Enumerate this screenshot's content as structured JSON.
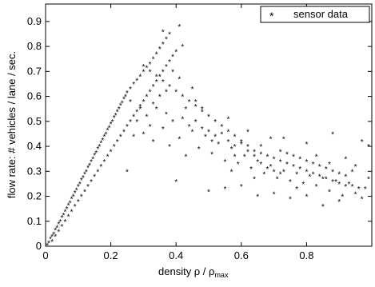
{
  "chart_data": {
    "type": "scatter",
    "title": "",
    "xlabel": "density ρ / ρ",
    "xlabel_sub": "max",
    "ylabel": "flow rate: # vehicles / lane / sec.",
    "xlim": [
      0,
      1.0
    ],
    "ylim": [
      0,
      0.97
    ],
    "xticks": [
      0,
      0.2,
      0.4,
      0.6,
      0.8
    ],
    "xtick_labels": [
      "0",
      "0.2",
      "0.4",
      "0.6",
      "0.8"
    ],
    "yticks": [
      0,
      0.1,
      0.2,
      0.3,
      0.4,
      0.5,
      0.6,
      0.7,
      0.8,
      0.9
    ],
    "ytick_labels": [
      "0",
      "0.1",
      "0.2",
      "0.3",
      "0.4",
      "0.5",
      "0.6",
      "0.7",
      "0.8",
      "0.9"
    ],
    "grid": false,
    "legend_position": "top-right",
    "series": [
      {
        "name": "sensor data",
        "marker": "*",
        "color": "#000000",
        "points": [
          [
            0.005,
            0.005
          ],
          [
            0.01,
            0.015
          ],
          [
            0.015,
            0.03
          ],
          [
            0.02,
            0.04
          ],
          [
            0.025,
            0.05
          ],
          [
            0.03,
            0.065
          ],
          [
            0.035,
            0.075
          ],
          [
            0.04,
            0.09
          ],
          [
            0.045,
            0.1
          ],
          [
            0.05,
            0.115
          ],
          [
            0.055,
            0.125
          ],
          [
            0.06,
            0.14
          ],
          [
            0.065,
            0.15
          ],
          [
            0.07,
            0.165
          ],
          [
            0.075,
            0.175
          ],
          [
            0.08,
            0.19
          ],
          [
            0.085,
            0.2
          ],
          [
            0.09,
            0.215
          ],
          [
            0.095,
            0.225
          ],
          [
            0.1,
            0.24
          ],
          [
            0.105,
            0.25
          ],
          [
            0.11,
            0.265
          ],
          [
            0.115,
            0.275
          ],
          [
            0.12,
            0.29
          ],
          [
            0.125,
            0.3
          ],
          [
            0.13,
            0.315
          ],
          [
            0.135,
            0.325
          ],
          [
            0.14,
            0.34
          ],
          [
            0.145,
            0.35
          ],
          [
            0.15,
            0.365
          ],
          [
            0.155,
            0.375
          ],
          [
            0.16,
            0.39
          ],
          [
            0.165,
            0.4
          ],
          [
            0.17,
            0.415
          ],
          [
            0.175,
            0.425
          ],
          [
            0.18,
            0.44
          ],
          [
            0.185,
            0.45
          ],
          [
            0.19,
            0.465
          ],
          [
            0.195,
            0.475
          ],
          [
            0.2,
            0.49
          ],
          [
            0.205,
            0.5
          ],
          [
            0.21,
            0.515
          ],
          [
            0.215,
            0.525
          ],
          [
            0.22,
            0.54
          ],
          [
            0.225,
            0.55
          ],
          [
            0.23,
            0.565
          ],
          [
            0.235,
            0.575
          ],
          [
            0.24,
            0.59
          ],
          [
            0.245,
            0.6
          ],
          [
            0.25,
            0.615
          ],
          [
            0.26,
            0.63
          ],
          [
            0.27,
            0.65
          ],
          [
            0.28,
            0.665
          ],
          [
            0.29,
            0.68
          ],
          [
            0.3,
            0.7
          ],
          [
            0.31,
            0.715
          ],
          [
            0.32,
            0.73
          ],
          [
            0.33,
            0.75
          ],
          [
            0.34,
            0.77
          ],
          [
            0.35,
            0.79
          ],
          [
            0.36,
            0.81
          ],
          [
            0.37,
            0.83
          ],
          [
            0.38,
            0.85
          ],
          [
            0.36,
            0.86
          ],
          [
            0.41,
            0.88
          ],
          [
            0.02,
            0.02
          ],
          [
            0.03,
            0.04
          ],
          [
            0.04,
            0.06
          ],
          [
            0.05,
            0.08
          ],
          [
            0.06,
            0.1
          ],
          [
            0.07,
            0.12
          ],
          [
            0.08,
            0.14
          ],
          [
            0.09,
            0.16
          ],
          [
            0.1,
            0.18
          ],
          [
            0.11,
            0.2
          ],
          [
            0.12,
            0.22
          ],
          [
            0.13,
            0.24
          ],
          [
            0.14,
            0.26
          ],
          [
            0.15,
            0.28
          ],
          [
            0.16,
            0.3
          ],
          [
            0.17,
            0.32
          ],
          [
            0.18,
            0.34
          ],
          [
            0.19,
            0.36
          ],
          [
            0.2,
            0.38
          ],
          [
            0.21,
            0.4
          ],
          [
            0.22,
            0.42
          ],
          [
            0.23,
            0.44
          ],
          [
            0.24,
            0.46
          ],
          [
            0.25,
            0.48
          ],
          [
            0.26,
            0.5
          ],
          [
            0.27,
            0.52
          ],
          [
            0.28,
            0.54
          ],
          [
            0.29,
            0.56
          ],
          [
            0.3,
            0.58
          ],
          [
            0.31,
            0.6
          ],
          [
            0.32,
            0.62
          ],
          [
            0.33,
            0.64
          ],
          [
            0.34,
            0.66
          ],
          [
            0.35,
            0.68
          ],
          [
            0.36,
            0.7
          ],
          [
            0.37,
            0.72
          ],
          [
            0.38,
            0.74
          ],
          [
            0.39,
            0.76
          ],
          [
            0.4,
            0.78
          ],
          [
            0.42,
            0.8
          ],
          [
            0.3,
            0.72
          ],
          [
            0.32,
            0.7
          ],
          [
            0.34,
            0.68
          ],
          [
            0.36,
            0.66
          ],
          [
            0.38,
            0.64
          ],
          [
            0.4,
            0.62
          ],
          [
            0.42,
            0.6
          ],
          [
            0.44,
            0.58
          ],
          [
            0.46,
            0.56
          ],
          [
            0.48,
            0.54
          ],
          [
            0.5,
            0.52
          ],
          [
            0.52,
            0.5
          ],
          [
            0.54,
            0.48
          ],
          [
            0.56,
            0.46
          ],
          [
            0.58,
            0.44
          ],
          [
            0.6,
            0.42
          ],
          [
            0.62,
            0.4
          ],
          [
            0.64,
            0.38
          ],
          [
            0.66,
            0.37
          ],
          [
            0.68,
            0.36
          ],
          [
            0.7,
            0.35
          ],
          [
            0.72,
            0.34
          ],
          [
            0.74,
            0.33
          ],
          [
            0.76,
            0.32
          ],
          [
            0.78,
            0.31
          ],
          [
            0.8,
            0.3
          ],
          [
            0.82,
            0.29
          ],
          [
            0.84,
            0.28
          ],
          [
            0.86,
            0.27
          ],
          [
            0.88,
            0.26
          ],
          [
            0.9,
            0.25
          ],
          [
            0.92,
            0.24
          ],
          [
            0.94,
            0.24
          ],
          [
            0.96,
            0.23
          ],
          [
            0.98,
            0.23
          ],
          [
            0.28,
            0.5
          ],
          [
            0.3,
            0.45
          ],
          [
            0.33,
            0.42
          ],
          [
            0.36,
            0.47
          ],
          [
            0.38,
            0.4
          ],
          [
            0.41,
            0.43
          ],
          [
            0.43,
            0.36
          ],
          [
            0.45,
            0.46
          ],
          [
            0.47,
            0.39
          ],
          [
            0.49,
            0.44
          ],
          [
            0.51,
            0.37
          ],
          [
            0.53,
            0.41
          ],
          [
            0.55,
            0.34
          ],
          [
            0.57,
            0.39
          ],
          [
            0.59,
            0.33
          ],
          [
            0.61,
            0.36
          ],
          [
            0.63,
            0.31
          ],
          [
            0.65,
            0.34
          ],
          [
            0.67,
            0.29
          ],
          [
            0.69,
            0.32
          ],
          [
            0.71,
            0.27
          ],
          [
            0.73,
            0.3
          ],
          [
            0.75,
            0.26
          ],
          [
            0.77,
            0.29
          ],
          [
            0.79,
            0.25
          ],
          [
            0.81,
            0.28
          ],
          [
            0.83,
            0.24
          ],
          [
            0.85,
            0.27
          ],
          [
            0.87,
            0.22
          ],
          [
            0.89,
            0.26
          ],
          [
            0.91,
            0.2
          ],
          [
            0.93,
            0.25
          ],
          [
            0.95,
            0.21
          ],
          [
            0.97,
            0.19
          ],
          [
            0.99,
            0.27
          ],
          [
            0.26,
            0.58
          ],
          [
            0.29,
            0.55
          ],
          [
            0.31,
            0.52
          ],
          [
            0.34,
            0.55
          ],
          [
            0.37,
            0.53
          ],
          [
            0.39,
            0.5
          ],
          [
            0.42,
            0.51
          ],
          [
            0.44,
            0.48
          ],
          [
            0.46,
            0.5
          ],
          [
            0.48,
            0.47
          ],
          [
            0.5,
            0.46
          ],
          [
            0.52,
            0.44
          ],
          [
            0.54,
            0.45
          ],
          [
            0.56,
            0.42
          ],
          [
            0.58,
            0.4
          ],
          [
            0.6,
            0.41
          ],
          [
            0.62,
            0.38
          ],
          [
            0.64,
            0.36
          ],
          [
            0.66,
            0.33
          ],
          [
            0.68,
            0.31
          ],
          [
            0.7,
            0.3
          ],
          [
            0.72,
            0.29
          ],
          [
            0.74,
            0.37
          ],
          [
            0.76,
            0.36
          ],
          [
            0.78,
            0.35
          ],
          [
            0.8,
            0.34
          ],
          [
            0.82,
            0.33
          ],
          [
            0.84,
            0.32
          ],
          [
            0.86,
            0.31
          ],
          [
            0.88,
            0.3
          ],
          [
            0.9,
            0.29
          ],
          [
            0.92,
            0.28
          ],
          [
            0.94,
            0.3
          ],
          [
            0.97,
            0.42
          ],
          [
            0.99,
            0.4
          ],
          [
            0.25,
            0.3
          ],
          [
            0.4,
            0.26
          ],
          [
            0.5,
            0.22
          ],
          [
            0.55,
            0.23
          ],
          [
            0.6,
            0.24
          ],
          [
            0.65,
            0.2
          ],
          [
            0.7,
            0.21
          ],
          [
            0.75,
            0.19
          ],
          [
            0.8,
            0.2
          ],
          [
            0.85,
            0.16
          ],
          [
            0.9,
            0.18
          ],
          [
            0.73,
            0.43
          ],
          [
            0.8,
            0.41
          ],
          [
            0.88,
            0.45
          ],
          [
            0.62,
            0.46
          ],
          [
            0.56,
            0.51
          ],
          [
            0.48,
            0.55
          ],
          [
            0.45,
            0.63
          ],
          [
            0.41,
            0.67
          ],
          [
            0.39,
            0.7
          ],
          [
            0.43,
            0.55
          ],
          [
            0.35,
            0.6
          ],
          [
            0.33,
            0.57
          ],
          [
            0.37,
            0.62
          ],
          [
            0.32,
            0.48
          ],
          [
            0.27,
            0.44
          ],
          [
            0.46,
            0.58
          ],
          [
            0.51,
            0.42
          ],
          [
            0.58,
            0.36
          ],
          [
            0.66,
            0.4
          ],
          [
            0.69,
            0.43
          ],
          [
            0.72,
            0.38
          ],
          [
            0.77,
            0.23
          ],
          [
            0.83,
            0.36
          ],
          [
            0.87,
            0.33
          ],
          [
            0.92,
            0.35
          ],
          [
            0.95,
            0.32
          ],
          [
            0.64,
            0.27
          ],
          [
            0.57,
            0.3
          ]
        ]
      }
    ]
  }
}
